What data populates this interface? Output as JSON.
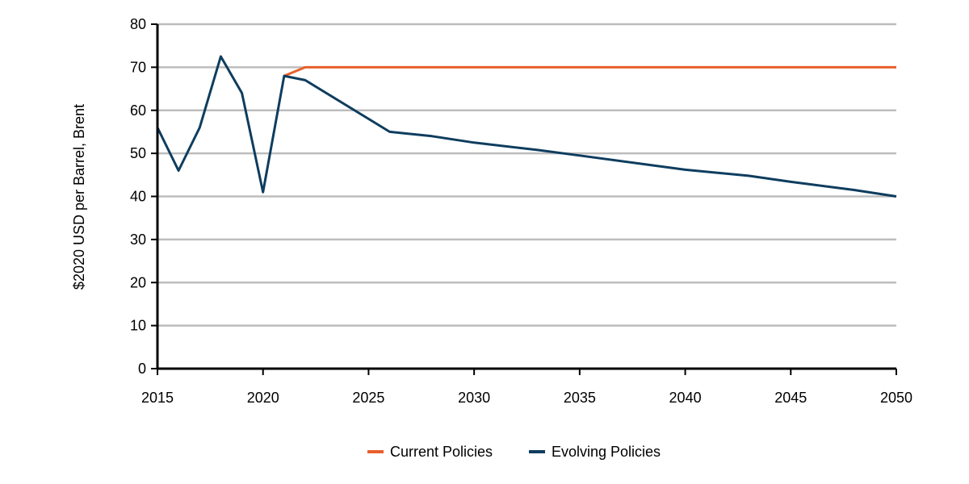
{
  "chart_data": {
    "type": "line",
    "title": "",
    "xlabel": "",
    "ylabel": "$2020 USD per Barrel, Brent",
    "xlim": [
      2015,
      2050
    ],
    "ylim": [
      0,
      80
    ],
    "x_ticks": [
      2015,
      2020,
      2025,
      2030,
      2035,
      2040,
      2045,
      2050
    ],
    "y_ticks": [
      0,
      10,
      20,
      30,
      40,
      50,
      60,
      70,
      80
    ],
    "grid": "horizontal",
    "legend_position": "bottom-center",
    "series": [
      {
        "name": "Current Policies",
        "color": "#e8602c",
        "points": [
          [
            2021,
            68
          ],
          [
            2022,
            70
          ],
          [
            2050,
            70
          ]
        ]
      },
      {
        "name": "Evolving Policies",
        "color": "#0e3d5f",
        "points": [
          [
            2015,
            56
          ],
          [
            2016,
            46
          ],
          [
            2017,
            56
          ],
          [
            2018,
            72.5
          ],
          [
            2019,
            64
          ],
          [
            2020,
            41
          ],
          [
            2021,
            68
          ],
          [
            2022,
            67
          ],
          [
            2026,
            55
          ],
          [
            2028,
            54
          ],
          [
            2030,
            52.5
          ],
          [
            2033,
            50.8
          ],
          [
            2035,
            49.5
          ],
          [
            2040,
            46.2
          ],
          [
            2043,
            44.8
          ],
          [
            2045,
            43.4
          ],
          [
            2048,
            41.5
          ],
          [
            2050,
            40
          ]
        ]
      }
    ]
  }
}
